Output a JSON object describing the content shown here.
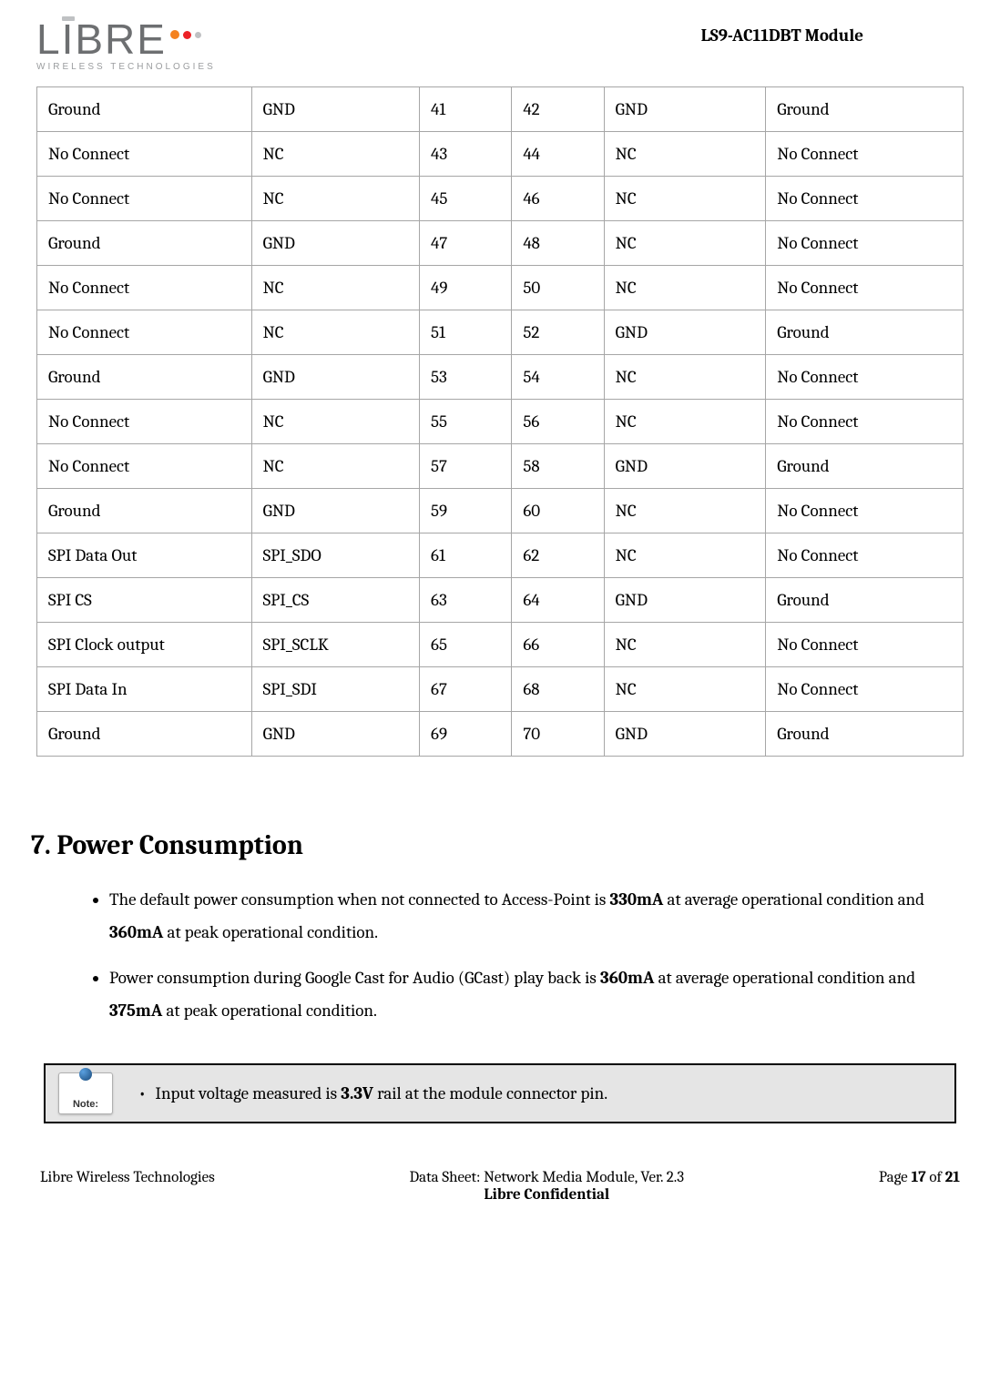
{
  "header": {
    "logo_name": "LIBRE",
    "logo_tagline": "WIRELESS TECHNOLOGIES",
    "doc_title": "LS9-AC11DBT Module"
  },
  "pin_table": {
    "rows": [
      [
        "Ground",
        "GND",
        "41",
        "42",
        "GND",
        "Ground"
      ],
      [
        "No Connect",
        "NC",
        "43",
        "44",
        "NC",
        "No Connect"
      ],
      [
        "No Connect",
        "NC",
        "45",
        "46",
        "NC",
        "No Connect"
      ],
      [
        "Ground",
        "GND",
        "47",
        "48",
        "NC",
        "No Connect"
      ],
      [
        "No Connect",
        "NC",
        "49",
        "50",
        "NC",
        "No Connect"
      ],
      [
        "No Connect",
        "NC",
        "51",
        "52",
        "GND",
        "Ground"
      ],
      [
        "Ground",
        "GND",
        "53",
        "54",
        "NC",
        "No Connect"
      ],
      [
        "No Connect",
        "NC",
        "55",
        "56",
        "NC",
        "No Connect"
      ],
      [
        "No Connect",
        "NC",
        "57",
        "58",
        "GND",
        "Ground"
      ],
      [
        "Ground",
        "GND",
        "59",
        "60",
        "NC",
        "No Connect"
      ],
      [
        "SPI Data Out",
        "SPI_SDO",
        "61",
        "62",
        "NC",
        "No Connect"
      ],
      [
        "SPI CS",
        "SPI_CS",
        "63",
        "64",
        "GND",
        "Ground"
      ],
      [
        "SPI Clock output",
        "SPI_SCLK",
        "65",
        "66",
        "NC",
        "No Connect"
      ],
      [
        "SPI Data In",
        "SPI_SDI",
        "67",
        "68",
        "NC",
        "No Connect"
      ],
      [
        "Ground",
        "GND",
        "69",
        "70",
        "GND",
        "Ground"
      ]
    ]
  },
  "section": {
    "heading": "7. Power Consumption",
    "bullet1_a": "The default power consumption when not connected to Access-Point is ",
    "bullet1_bold1": "330mA",
    "bullet1_b": " at average operational condition and ",
    "bullet1_bold2": "360mA",
    "bullet1_c": " at peak operational condition.",
    "bullet2_a": "Power consumption during Google Cast for Audio (GCast) play back is ",
    "bullet2_bold1": "360mA",
    "bullet2_b": " at average operational condition and ",
    "bullet2_bold2": "375mA",
    "bullet2_c": " at peak operational condition."
  },
  "note": {
    "icon_label": "Note:",
    "text_a": "Input voltage measured is ",
    "text_bold": "3.3V",
    "text_b": " rail at the module connector pin."
  },
  "footer": {
    "left": "Libre Wireless Technologies",
    "center1": "Data Sheet: Network Media Module, Ver. 2.3",
    "center2": "Libre Confidential",
    "right_a": "Page ",
    "right_bold1": "17",
    "right_b": " of ",
    "right_bold2": "21"
  }
}
